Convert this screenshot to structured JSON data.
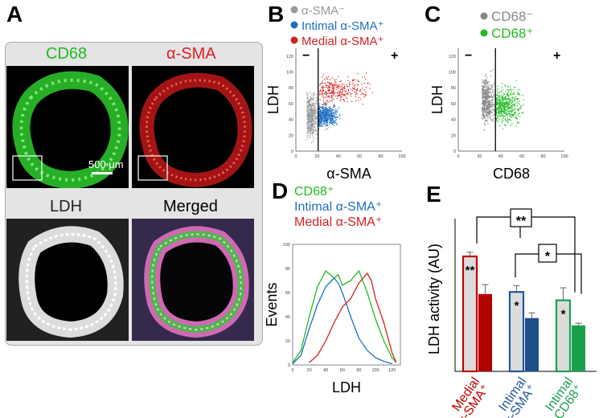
{
  "panels": {
    "a": "A",
    "b": "B",
    "c": "C",
    "d": "D",
    "e": "E"
  },
  "panel_a": {
    "cd68_label": "CD68",
    "asma_label": "α-SMA",
    "ldh_label": "LDH",
    "merged_label": "Merged",
    "scale_bar_label": "500 μm",
    "colors": {
      "cd68": "#22bb22",
      "asma": "#e02020",
      "ldh": "#222222",
      "merged": "#000000"
    }
  },
  "chart_data": [
    {
      "type": "scatter",
      "panel": "B",
      "legend": [
        {
          "name": "α-SMA⁻",
          "color": "#999999"
        },
        {
          "name": "Intimal α-SMA⁺",
          "color": "#1f6fc0"
        },
        {
          "name": "Medial α-SMA⁺",
          "color": "#d62020"
        }
      ],
      "xlabel": "α-SMA",
      "ylabel": "LDH",
      "xlim": [
        0,
        100
      ],
      "ylim": [
        0,
        130
      ],
      "xticks": [
        0,
        20,
        40,
        60,
        80,
        100
      ],
      "yticks": [
        0,
        20,
        40,
        60,
        80,
        100,
        120
      ],
      "gate_x": 21,
      "quadrant_labels": [
        "−",
        "+"
      ],
      "clusters": [
        {
          "series": "α-SMA⁻",
          "x_range": [
            10,
            21
          ],
          "y_center": 45,
          "y_spread": 28
        },
        {
          "series": "Intimal α-SMA⁺",
          "x_range": [
            21,
            42
          ],
          "y_center": 45,
          "y_spread": 14
        },
        {
          "series": "Medial α-SMA⁺",
          "x_range": [
            22,
            75
          ],
          "y_center": 78,
          "y_spread": 18
        }
      ]
    },
    {
      "type": "scatter",
      "panel": "C",
      "legend": [
        {
          "name": "CD68⁻",
          "color": "#888888"
        },
        {
          "name": "CD68⁺",
          "color": "#22bb22"
        }
      ],
      "xlabel": "CD68",
      "ylabel": "LDH",
      "xlim": [
        0,
        100
      ],
      "ylim": [
        0,
        130
      ],
      "xticks": [
        0,
        20,
        40,
        60,
        80,
        100
      ],
      "yticks": [
        0,
        20,
        40,
        60,
        80,
        100,
        120
      ],
      "gate_x": 35,
      "quadrant_labels": [
        "−",
        "+"
      ],
      "clusters": [
        {
          "series": "CD68⁻",
          "x_range": [
            22,
            35
          ],
          "y_center": 65,
          "y_spread": 30
        },
        {
          "series": "CD68⁺",
          "x_range": [
            35,
            62
          ],
          "y_center": 58,
          "y_spread": 24
        }
      ]
    },
    {
      "type": "line",
      "panel": "D",
      "title_lines": [
        {
          "name": "CD68⁺",
          "color": "#22bb22"
        },
        {
          "name": "Intimal α-SMA⁺",
          "color": "#1f6fc0"
        },
        {
          "name": "Medial α-SMA⁺",
          "color": "#d62020"
        }
      ],
      "xlabel": "LDH",
      "ylabel": "Events",
      "xlim": [
        0,
        130
      ],
      "ylim": [
        0,
        100
      ],
      "xticks": [
        0,
        20,
        40,
        60,
        80,
        100,
        120
      ],
      "yticks": [
        0,
        20,
        40,
        60,
        80,
        100
      ],
      "series": [
        {
          "name": "CD68⁺",
          "color": "#22bb22",
          "x": [
            0,
            10,
            20,
            30,
            40,
            50,
            55,
            60,
            70,
            80,
            90,
            100,
            110,
            120,
            125
          ],
          "y": [
            2,
            12,
            40,
            65,
            78,
            72,
            75,
            66,
            70,
            78,
            60,
            38,
            20,
            6,
            2
          ]
        },
        {
          "name": "Intimal α-SMA⁺",
          "color": "#1f6fc0",
          "x": [
            0,
            10,
            20,
            30,
            40,
            50,
            55,
            60,
            70,
            80,
            90,
            100,
            110,
            120
          ],
          "y": [
            1,
            8,
            30,
            50,
            65,
            72,
            68,
            60,
            40,
            22,
            12,
            6,
            3,
            1
          ]
        },
        {
          "name": "Medial α-SMA⁺",
          "color": "#d62020",
          "x": [
            20,
            30,
            40,
            50,
            60,
            70,
            80,
            90,
            95,
            100,
            110,
            120,
            125
          ],
          "y": [
            2,
            8,
            20,
            35,
            48,
            55,
            68,
            76,
            70,
            55,
            35,
            10,
            2
          ]
        }
      ]
    },
    {
      "type": "bar",
      "panel": "E",
      "ylabel": "LDH activity (AU)",
      "ylim": [
        0,
        120
      ],
      "categories": [
        "Medial α-SMA⁺",
        "Intimal α-SMA⁺",
        "Intimal CD68⁺"
      ],
      "category_colors": [
        "#c00000",
        "#1f5aa0",
        "#1aa050"
      ],
      "series": [
        {
          "values": [
            110,
            76,
            68
          ],
          "errors": [
            4,
            6,
            12
          ],
          "style": "outline"
        },
        {
          "values": [
            74,
            51,
            44
          ],
          "errors": [
            9,
            5,
            2
          ],
          "style": "filled"
        }
      ],
      "outline_fill": "#dcdcdc",
      "dark_colors": [
        "#b00000",
        "#1f4f88",
        "#16a04a"
      ],
      "bar_stars": [
        "**",
        "*",
        "*"
      ],
      "brackets": [
        {
          "label": "**",
          "from": 0,
          "to": 2,
          "level": "upper"
        },
        {
          "label": "*",
          "from": 1,
          "to": 2,
          "level": "lower"
        }
      ]
    }
  ]
}
